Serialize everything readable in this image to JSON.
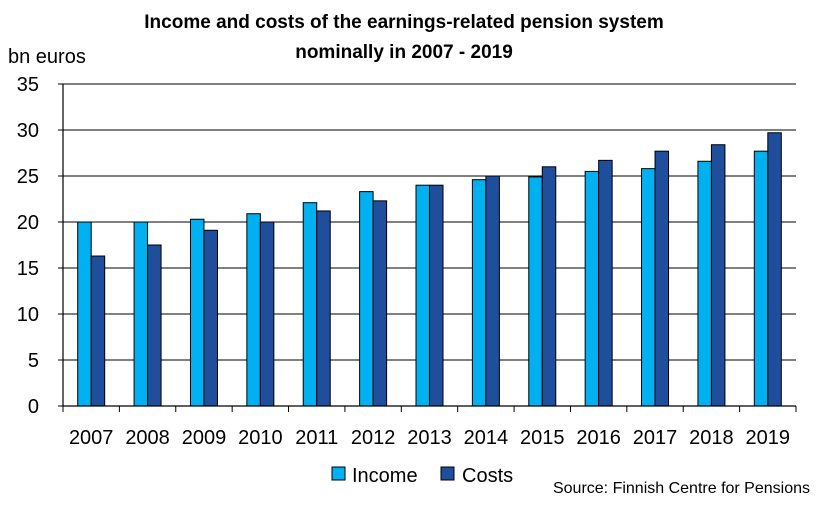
{
  "chart_data": {
    "type": "bar",
    "title": "Income and costs of the earnings-related pension system",
    "subtitle": "nominally in 2007 - 2019",
    "ylabel": "bn euros",
    "xlabel": "",
    "ylim": [
      0,
      35
    ],
    "yticks": [
      0,
      5,
      10,
      15,
      20,
      25,
      30,
      35
    ],
    "grid": true,
    "legend_position": "bottom",
    "categories": [
      "2007",
      "2008",
      "2009",
      "2010",
      "2011",
      "2012",
      "2013",
      "2014",
      "2015",
      "2016",
      "2017",
      "2018",
      "2019"
    ],
    "series": [
      {
        "name": "Income",
        "color": "#00b0f0",
        "values": [
          20.0,
          20.0,
          20.3,
          20.9,
          22.1,
          23.3,
          24.0,
          24.6,
          24.9,
          25.5,
          25.8,
          26.6,
          27.7
        ]
      },
      {
        "name": "Costs",
        "color": "#1f4e9c",
        "values": [
          16.3,
          17.5,
          19.1,
          20.0,
          21.2,
          22.3,
          24.0,
          25.0,
          26.0,
          26.7,
          27.7,
          28.4,
          29.7
        ]
      }
    ],
    "source": "Source: Finnish Centre for Pensions"
  }
}
